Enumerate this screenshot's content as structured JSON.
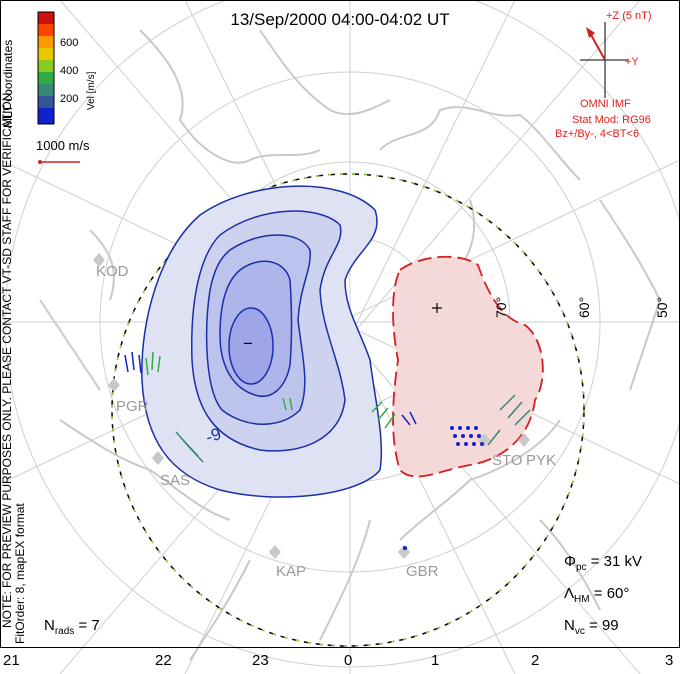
{
  "header": {
    "title": "13/Sep/2000 04:00-04:02 UT"
  },
  "colorbar": {
    "ticks": [
      "600",
      "400",
      "200"
    ],
    "label": "Vel [m/s]",
    "colors": [
      "#cc1111",
      "#ff4400",
      "#ff9900",
      "#e8c800",
      "#88cc22",
      "#33aa44",
      "#338877",
      "#335599",
      "#1122cc"
    ]
  },
  "coord_label": "MLT coordinates",
  "vector_scale": {
    "label": "1000 m/s"
  },
  "side_notes": {
    "preview": "NOTE: FOR PREVIEW PURPOSES ONLY. PLEASE CONTACT VT-SD STAFF FOR VERIFICATION.",
    "fit": "FitOrder: 8, mapEX format"
  },
  "imf": {
    "z_label": "+Z (5 nT)",
    "y_label": "+Y",
    "source": "OMNI IMF",
    "stat_model": "Stat Mod: RG96",
    "condition": "Bz+/By-, 4<BT<6"
  },
  "latitude_labels": [
    "70°",
    "60°",
    "50°"
  ],
  "radar_sites": [
    "KOD",
    "PGR",
    "SAS",
    "KAP",
    "GBR",
    "STO",
    "PYK"
  ],
  "contour_labels": {
    "negative": "-9",
    "min_marker": "−",
    "max_marker": "+"
  },
  "stats": {
    "phi_symbol": "Φ",
    "phi_sub": "pc",
    "phi_value": "=  31 kV",
    "lambda_symbol": "Λ",
    "lambda_sub": "HM",
    "lambda_value": "=  60°",
    "nvc_symbol": "N",
    "nvc_sub": "vc",
    "nvc_value": "=  99",
    "nrads_symbol": "N",
    "nrads_sub": "rads",
    "nrads_value": "=  7"
  },
  "mlt_ticks": [
    "21",
    "22",
    "23",
    "0",
    "1",
    "2",
    "3"
  ],
  "colors": {
    "dusk_cell_fill": "#dfe2f2",
    "dusk_cell_inner": "#bcc3ec",
    "dusk_cell_core": "#9ea6e8",
    "dusk_contour": "#1a2fa8",
    "dawn_cell_fill": "#f4d9d8",
    "dawn_contour": "#d42020",
    "coastline": "#c9c9c9",
    "grid": "#cfcfcf",
    "boundary_dash": "#9bd24a"
  }
}
